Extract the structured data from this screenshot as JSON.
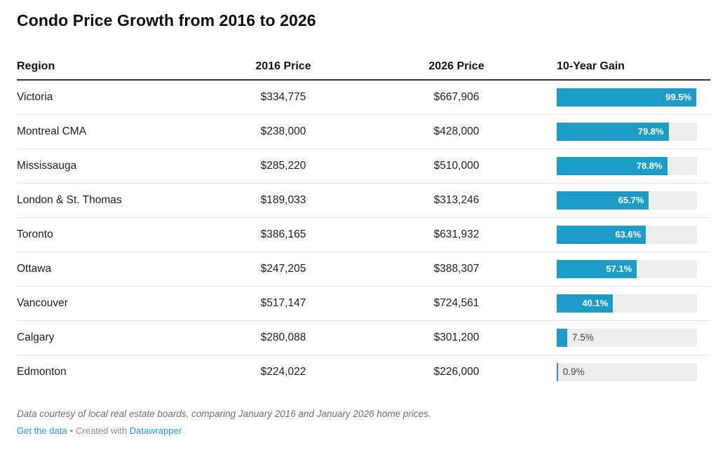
{
  "title": "Condo Price Growth from 2016 to 2026",
  "table": {
    "columns": [
      "Region",
      "2016 Price",
      "2026 Price",
      "10-Year Gain"
    ],
    "rows": [
      {
        "region": "Victoria",
        "price_2016": "$334,775",
        "price_2026": "$667,906",
        "gain_pct": 99.5,
        "gain_label": "99.5%",
        "label_inside": true
      },
      {
        "region": "Montreal CMA",
        "price_2016": "$238,000",
        "price_2026": "$428,000",
        "gain_pct": 79.8,
        "gain_label": "79.8%",
        "label_inside": true
      },
      {
        "region": "Mississauga",
        "price_2016": "$285,220",
        "price_2026": "$510,000",
        "gain_pct": 78.8,
        "gain_label": "78.8%",
        "label_inside": true
      },
      {
        "region": "London & St. Thomas",
        "price_2016": "$189,033",
        "price_2026": "$313,246",
        "gain_pct": 65.7,
        "gain_label": "65.7%",
        "label_inside": true
      },
      {
        "region": "Toronto",
        "price_2016": "$386,165",
        "price_2026": "$631,932",
        "gain_pct": 63.6,
        "gain_label": "63.6%",
        "label_inside": true
      },
      {
        "region": "Ottawa",
        "price_2016": "$247,205",
        "price_2026": "$388,307",
        "gain_pct": 57.1,
        "gain_label": "57.1%",
        "label_inside": true
      },
      {
        "region": "Vancouver",
        "price_2016": "$517,147",
        "price_2026": "$724,561",
        "gain_pct": 40.1,
        "gain_label": "40.1%",
        "label_inside": true
      },
      {
        "region": "Calgary",
        "price_2016": "$280,088",
        "price_2026": "$301,200",
        "gain_pct": 7.5,
        "gain_label": "7.5%",
        "label_inside": false
      },
      {
        "region": "Edmonton",
        "price_2016": "$224,022",
        "price_2026": "$226,000",
        "gain_pct": 0.9,
        "gain_label": "0.9%",
        "label_inside": false
      }
    ]
  },
  "footer": {
    "note": "Data courtesy of local real estate boards, comparing January 2016 and January 2026 home prices.",
    "get_data_label": "Get the data",
    "separator": "•",
    "created_with": "Created with",
    "datawrapper_label": "Datawrapper"
  },
  "colors": {
    "bar": "#1E9CC8",
    "bar_track": "#ECECEC",
    "link": "#1E9CD8",
    "header_rule": "#2E2E2E",
    "row_divider": "#E3E3E3"
  },
  "chart_data": {
    "type": "table",
    "title": "Condo Price Growth from 2016 to 2026",
    "columns": [
      "Region",
      "2016 Price",
      "2026 Price",
      "10-Year Gain"
    ],
    "rows": [
      [
        "Victoria",
        334775,
        667906,
        99.5
      ],
      [
        "Montreal CMA",
        238000,
        428000,
        79.8
      ],
      [
        "Mississauga",
        285220,
        510000,
        78.8
      ],
      [
        "London & St. Thomas",
        189033,
        313246,
        65.7
      ],
      [
        "Toronto",
        386165,
        631932,
        63.6
      ],
      [
        "Ottawa",
        247205,
        388307,
        57.1
      ],
      [
        "Vancouver",
        517147,
        724561,
        40.1
      ],
      [
        "Calgary",
        280088,
        301200,
        7.5
      ],
      [
        "Edmonton",
        224022,
        226000,
        0.9
      ]
    ],
    "bar_column": "10-Year Gain",
    "bar_unit": "%",
    "bar_scale": [
      0,
      100
    ],
    "note": "Data courtesy of local real estate boards, comparing January 2016 and January 2026 home prices."
  }
}
